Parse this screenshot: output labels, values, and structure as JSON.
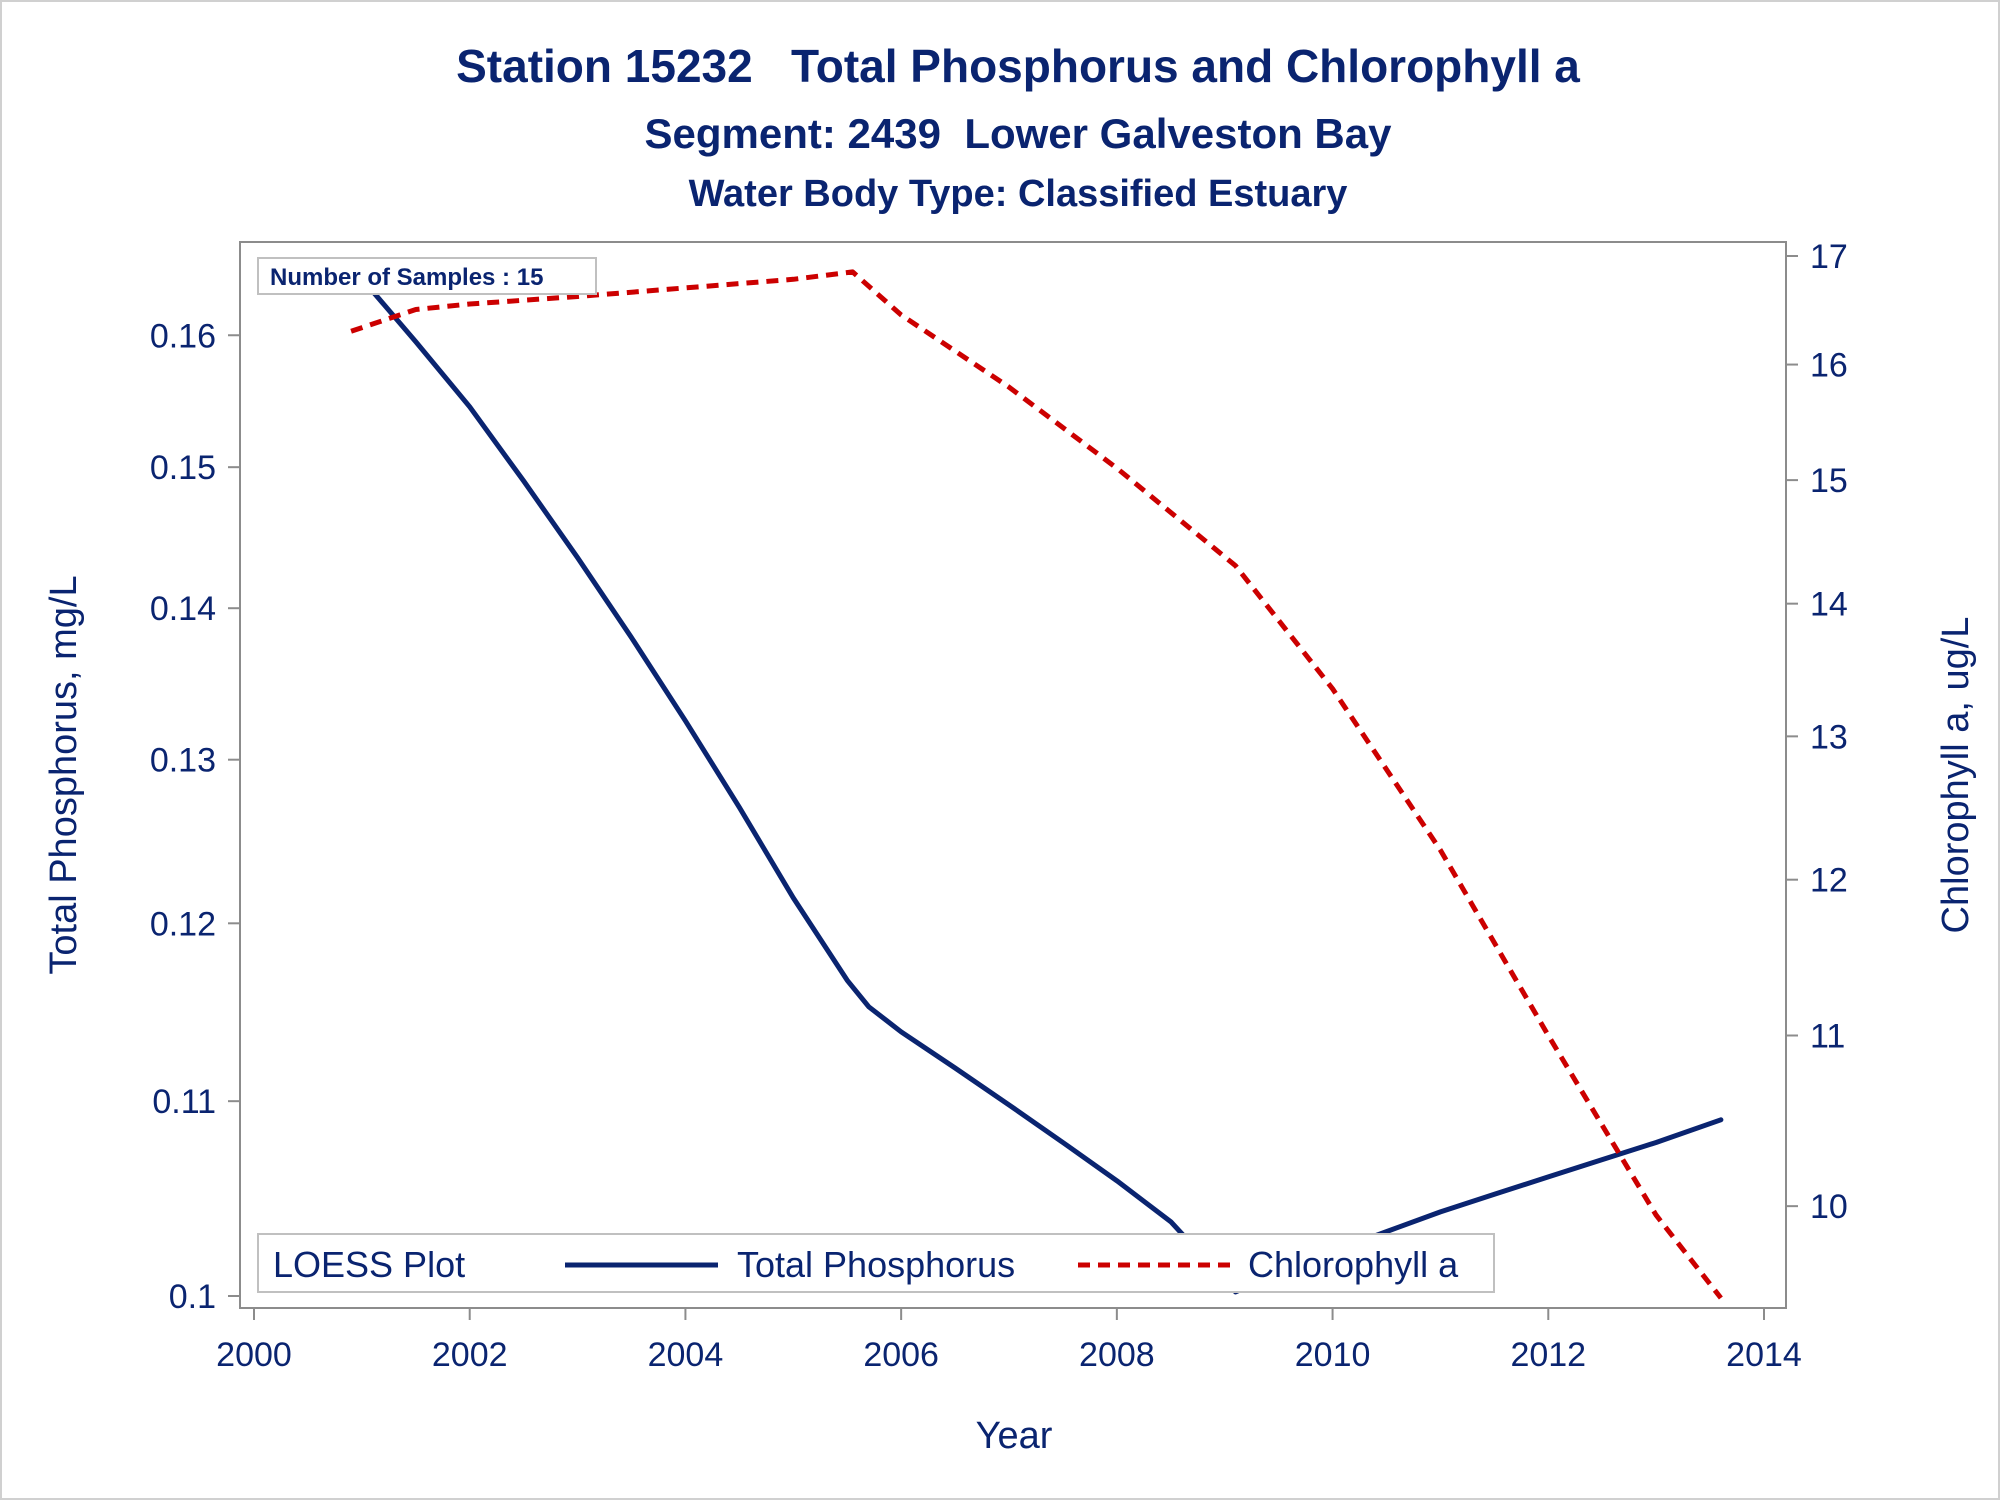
{
  "titles": {
    "line1": "Station 15232   Total Phosphorus and Chlorophyll a",
    "line2": "Segment: 2439  Lower Galveston Bay",
    "line3": "Water Body Type: Classified Estuary"
  },
  "inset": {
    "text": "Number of Samples : 15"
  },
  "legend": {
    "title": "LOESS Plot",
    "items": [
      {
        "label": "Total Phosphorus",
        "color": "#0a2470",
        "style": "solid"
      },
      {
        "label": "Chlorophyll a",
        "color": "#cc0000",
        "style": "dashed"
      }
    ]
  },
  "chart_data": {
    "type": "line",
    "xlabel": "Year",
    "ylabel": "Total Phosphorus, mg/L",
    "y2label": "Chlorophyll a, ug/L",
    "xlim": [
      2000,
      2014
    ],
    "ylim": [
      0.1,
      0.166
    ],
    "y_scale": "log",
    "y2lim": [
      9.5,
      17
    ],
    "y2_scale": "log",
    "x_ticks": [
      "2000",
      "2002",
      "2004",
      "2006",
      "2008",
      "2010",
      "2012",
      "2014"
    ],
    "y_ticks": [
      "0.1",
      "0.11",
      "0.12",
      "0.13",
      "0.14",
      "0.15",
      "0.16"
    ],
    "y2_ticks": [
      "10",
      "11",
      "12",
      "13",
      "14",
      "15",
      "16",
      "17"
    ],
    "grid": false,
    "legend_position": "bottom-inside",
    "series": [
      {
        "name": "Total Phosphorus",
        "axis": "left",
        "color": "#0a2470",
        "style": "solid",
        "x": [
          2000.9,
          2001.5,
          2002.0,
          2002.5,
          2003.0,
          2003.5,
          2004.0,
          2004.5,
          2005.0,
          2005.5,
          2005.7,
          2006.0,
          2006.5,
          2007.0,
          2007.5,
          2008.0,
          2008.5,
          2009.1,
          2009.5,
          2010.0,
          2010.5,
          2011.0,
          2011.5,
          2012.0,
          2012.5,
          2013.0,
          2013.6
        ],
        "values": [
          0.1655,
          0.1595,
          0.1545,
          0.149,
          0.1435,
          0.138,
          0.1325,
          0.127,
          0.1215,
          0.1167,
          0.1152,
          0.1138,
          0.1118,
          0.1098,
          0.1078,
          0.1058,
          0.1037,
          0.1002,
          0.1011,
          0.1022,
          0.1032,
          0.1042,
          0.1051,
          0.106,
          0.1069,
          0.1078,
          0.109
        ]
      },
      {
        "name": "Chlorophyll a",
        "axis": "right",
        "color": "#cc0000",
        "style": "dashed",
        "x": [
          2000.9,
          2001.5,
          2002.0,
          2003.0,
          2004.0,
          2005.0,
          2005.55,
          2006.0,
          2007.0,
          2008.0,
          2009.1,
          2010.0,
          2011.0,
          2012.0,
          2013.0,
          2013.6
        ],
        "values": [
          16.3,
          16.5,
          16.55,
          16.62,
          16.7,
          16.78,
          16.85,
          16.45,
          15.8,
          15.1,
          14.3,
          13.35,
          12.2,
          11.0,
          9.95,
          9.5
        ]
      }
    ]
  }
}
